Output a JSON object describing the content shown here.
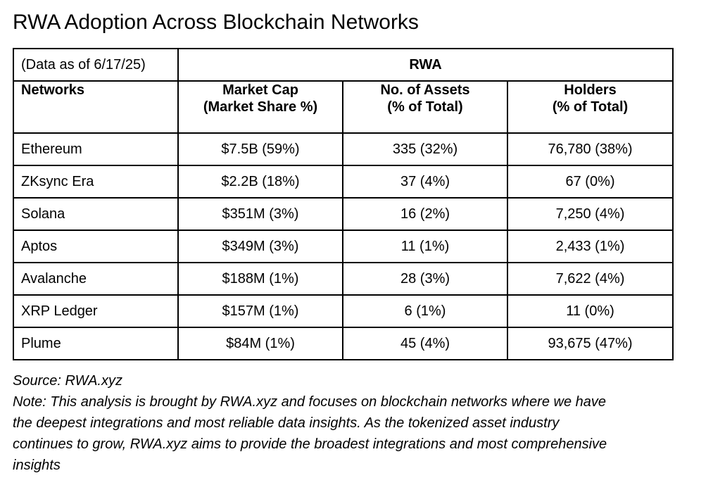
{
  "title": "RWA Adoption Across Blockchain Networks",
  "table": {
    "date_note": "(Data as of 6/17/25)",
    "group_header": "RWA",
    "columns": {
      "networks": "Networks",
      "market_cap": [
        "Market Cap",
        "(Market Share %)"
      ],
      "assets": [
        "No. of Assets",
        "(% of Total)"
      ],
      "holders": [
        "Holders",
        "(% of Total)"
      ]
    },
    "rows": [
      {
        "network": "Ethereum",
        "market_cap": "$7.5B (59%)",
        "assets": "335 (32%)",
        "holders": "76,780 (38%)"
      },
      {
        "network": "ZKsync Era",
        "market_cap": "$2.2B (18%)",
        "assets": "37 (4%)",
        "holders": "67 (0%)"
      },
      {
        "network": "Solana",
        "market_cap": "$351M (3%)",
        "assets": "16 (2%)",
        "holders": "7,250 (4%)"
      },
      {
        "network": "Aptos",
        "market_cap": "$349M (3%)",
        "assets": "11 (1%)",
        "holders": "2,433 (1%)"
      },
      {
        "network": "Avalanche",
        "market_cap": "$188M (1%)",
        "assets": "28 (3%)",
        "holders": "7,622 (4%)"
      },
      {
        "network": "XRP Ledger",
        "market_cap": "$157M (1%)",
        "assets": "6 (1%)",
        "holders": "11 (0%)"
      },
      {
        "network": "Plume",
        "market_cap": "$84M (1%)",
        "assets": "45 (4%)",
        "holders": "93,675 (47%)"
      }
    ]
  },
  "footer": {
    "source": "Source: RWA.xyz",
    "note_lines": [
      "Note: This analysis is brought by RWA.xyz and focuses on blockchain networks where we have",
      "the deepest integrations and most reliable data insights. As the tokenized asset industry",
      "continues to grow, RWA.xyz aims to provide the broadest integrations and most comprehensive",
      "insights"
    ]
  }
}
